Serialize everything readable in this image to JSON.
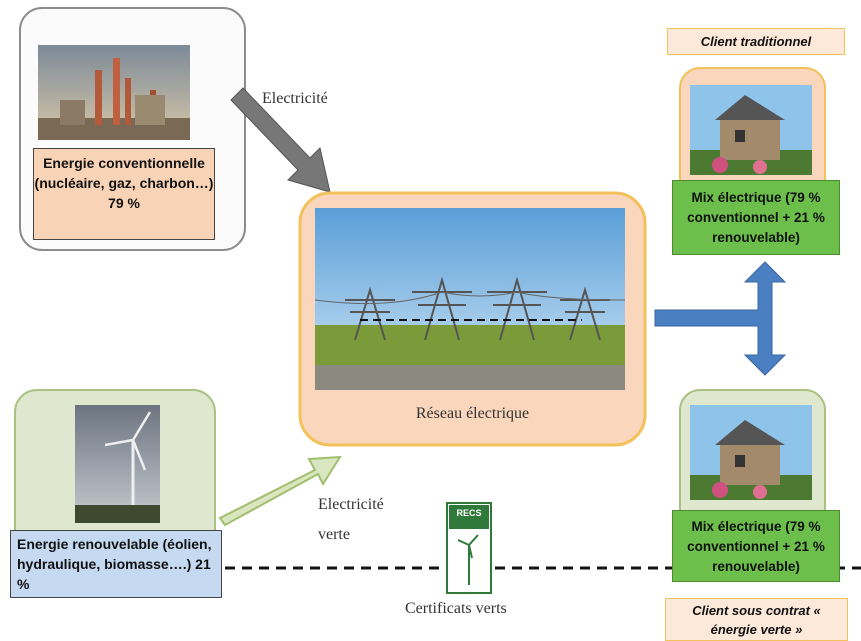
{
  "sources": [
    {
      "label": "Energie conventionnelle (nucléaire, gaz, charbon…) 79 %"
    },
    {
      "label": "Energie renouvelable (éolien, hydraulique, biomasse….) 21 %"
    }
  ],
  "flows": [
    {
      "label": "Electricité"
    },
    {
      "label": "Electricité verte"
    },
    {
      "label": "Certificats verts"
    }
  ],
  "grid": {
    "label": "Réseau électrique"
  },
  "clients": [
    {
      "title": "Client traditionnel",
      "mix": "Mix électrique (79 % conventionnel + 21 % renouvelable)"
    },
    {
      "title": "Client sous  contrat « énergie verte »",
      "mix": "Mix électrique (79 % conventionnel + 21 % renouvelable)"
    }
  ],
  "logo": {
    "label": "RECS"
  }
}
